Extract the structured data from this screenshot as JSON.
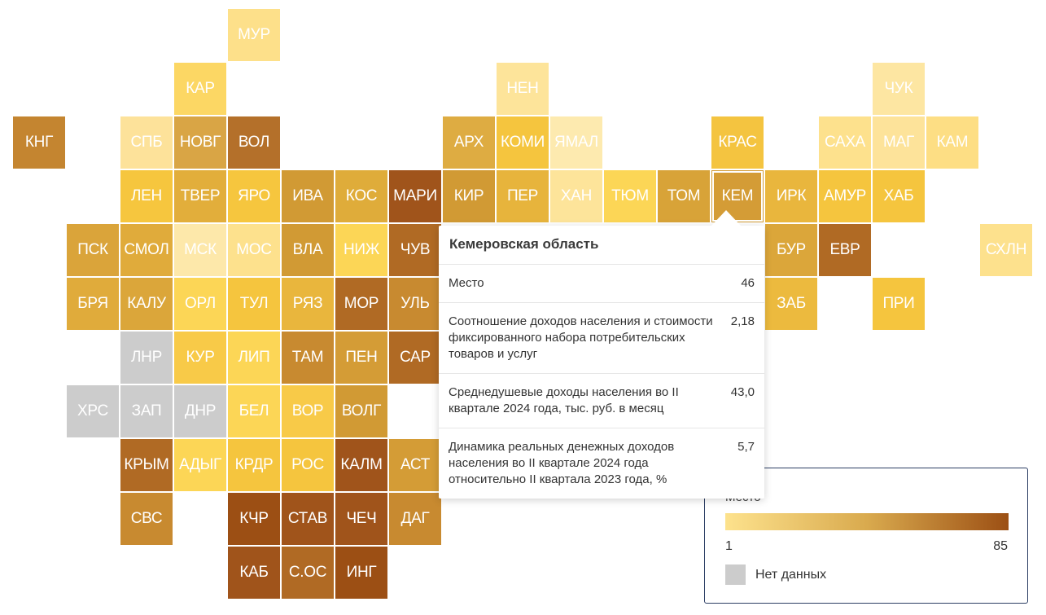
{
  "tiles": [
    {
      "label": "МУР",
      "col": 4,
      "row": 0,
      "color": "#fde08a"
    },
    {
      "label": "КАР",
      "col": 3,
      "row": 1,
      "color": "#fcd764"
    },
    {
      "label": "НЕН",
      "col": 9,
      "row": 1,
      "color": "#fde49a"
    },
    {
      "label": "ЧУК",
      "col": 16,
      "row": 1,
      "color": "#fde6a2"
    },
    {
      "label": "КНГ",
      "col": 0,
      "row": 2,
      "color": "#c48530"
    },
    {
      "label": "СПБ",
      "col": 2,
      "row": 2,
      "color": "#fde29a"
    },
    {
      "label": "НОВГ",
      "col": 3,
      "row": 2,
      "color": "#d9a545"
    },
    {
      "label": "ВОЛ",
      "col": 4,
      "row": 2,
      "color": "#b4702a"
    },
    {
      "label": "АРХ",
      "col": 8,
      "row": 2,
      "color": "#deac42"
    },
    {
      "label": "КОМИ",
      "col": 9,
      "row": 2,
      "color": "#f5c53e"
    },
    {
      "label": "ЯМАЛ",
      "col": 10,
      "row": 2,
      "color": "#fdeaaf"
    },
    {
      "label": "КРАС",
      "col": 13,
      "row": 2,
      "color": "#f4c440"
    },
    {
      "label": "САХА",
      "col": 15,
      "row": 2,
      "color": "#fde18d"
    },
    {
      "label": "МАГ",
      "col": 16,
      "row": 2,
      "color": "#fde39a"
    },
    {
      "label": "КАМ",
      "col": 17,
      "row": 2,
      "color": "#fdde84"
    },
    {
      "label": "ЛЕН",
      "col": 2,
      "row": 3,
      "color": "#f6c63e"
    },
    {
      "label": "ТВЕР",
      "col": 3,
      "row": 3,
      "color": "#e2ae3b"
    },
    {
      "label": "ЯРО",
      "col": 4,
      "row": 3,
      "color": "#f6c63e"
    },
    {
      "label": "ИВА",
      "col": 5,
      "row": 3,
      "color": "#d19a34"
    },
    {
      "label": "КОС",
      "col": 6,
      "row": 3,
      "color": "#dfac3a"
    },
    {
      "label": "МАРИ",
      "col": 7,
      "row": 3,
      "color": "#a0541b"
    },
    {
      "label": "КИР",
      "col": 8,
      "row": 3,
      "color": "#d19a34"
    },
    {
      "label": "ПЕР",
      "col": 9,
      "row": 3,
      "color": "#e7b43c"
    },
    {
      "label": "ХАН",
      "col": 10,
      "row": 3,
      "color": "#fde49a"
    },
    {
      "label": "ТЮМ",
      "col": 11,
      "row": 3,
      "color": "#fcd656"
    },
    {
      "label": "ТОМ",
      "col": 12,
      "row": 3,
      "color": "#d8a338"
    },
    {
      "label": "КЕМ",
      "col": 13,
      "row": 3,
      "color": "#d49c36"
    },
    {
      "label": "ИРК",
      "col": 14,
      "row": 3,
      "color": "#e9b63d"
    },
    {
      "label": "АМУР",
      "col": 15,
      "row": 3,
      "color": "#f5c53e"
    },
    {
      "label": "ХАБ",
      "col": 16,
      "row": 3,
      "color": "#f5c53e"
    },
    {
      "label": "ПСК",
      "col": 1,
      "row": 4,
      "color": "#daa43a"
    },
    {
      "label": "СМОЛ",
      "col": 2,
      "row": 4,
      "color": "#e0ab3b"
    },
    {
      "label": "МСК",
      "col": 3,
      "row": 4,
      "color": "#fde8aa"
    },
    {
      "label": "МОС",
      "col": 4,
      "row": 4,
      "color": "#fde18d"
    },
    {
      "label": "ВЛА",
      "col": 5,
      "row": 4,
      "color": "#d19a34"
    },
    {
      "label": "НИЖ",
      "col": 6,
      "row": 4,
      "color": "#fcd656"
    },
    {
      "label": "ЧУВ",
      "col": 7,
      "row": 4,
      "color": "#b06a24"
    },
    {
      "label": "БУР",
      "col": 14,
      "row": 4,
      "color": "#dba63a"
    },
    {
      "label": "ЕВР",
      "col": 15,
      "row": 4,
      "color": "#b06a24"
    },
    {
      "label": "СХЛН",
      "col": 18,
      "row": 4,
      "color": "#fde18d"
    },
    {
      "label": "БРЯ",
      "col": 1,
      "row": 5,
      "color": "#e0ab3b"
    },
    {
      "label": "КАЛУ",
      "col": 2,
      "row": 5,
      "color": "#dba63a"
    },
    {
      "label": "ОРЛ",
      "col": 3,
      "row": 5,
      "color": "#fcd656"
    },
    {
      "label": "ТУЛ",
      "col": 4,
      "row": 5,
      "color": "#f5c53e"
    },
    {
      "label": "РЯЗ",
      "col": 5,
      "row": 5,
      "color": "#e9b63d"
    },
    {
      "label": "МОР",
      "col": 6,
      "row": 5,
      "color": "#b06a24"
    },
    {
      "label": "УЛЬ",
      "col": 7,
      "row": 5,
      "color": "#c88a30"
    },
    {
      "label": "ЗАБ",
      "col": 14,
      "row": 5,
      "color": "#ecba3e"
    },
    {
      "label": "ПРИ",
      "col": 16,
      "row": 5,
      "color": "#f5c53e"
    },
    {
      "label": "ЛНР",
      "col": 2,
      "row": 6,
      "color": "#cccccc"
    },
    {
      "label": "КУР",
      "col": 3,
      "row": 6,
      "color": "#f8ca48"
    },
    {
      "label": "ЛИП",
      "col": 4,
      "row": 6,
      "color": "#fcd656"
    },
    {
      "label": "ТАМ",
      "col": 5,
      "row": 6,
      "color": "#c88a30"
    },
    {
      "label": "ПЕН",
      "col": 6,
      "row": 6,
      "color": "#d49c36"
    },
    {
      "label": "САР",
      "col": 7,
      "row": 6,
      "color": "#b06a24"
    },
    {
      "label": "ХРС",
      "col": 1,
      "row": 7,
      "color": "#cccccc"
    },
    {
      "label": "ЗАП",
      "col": 2,
      "row": 7,
      "color": "#cccccc"
    },
    {
      "label": "ДНР",
      "col": 3,
      "row": 7,
      "color": "#cccccc"
    },
    {
      "label": "БЕЛ",
      "col": 4,
      "row": 7,
      "color": "#fcd656"
    },
    {
      "label": "ВОР",
      "col": 5,
      "row": 7,
      "color": "#f8ca48"
    },
    {
      "label": "ВОЛГ",
      "col": 6,
      "row": 7,
      "color": "#d19a34"
    },
    {
      "label": "КРЫМ",
      "col": 2,
      "row": 8,
      "color": "#b06a24"
    },
    {
      "label": "АДЫГ",
      "col": 3,
      "row": 8,
      "color": "#fcd656"
    },
    {
      "label": "КРДР",
      "col": 4,
      "row": 8,
      "color": "#f5c53e"
    },
    {
      "label": "РОС",
      "col": 5,
      "row": 8,
      "color": "#f5c53e"
    },
    {
      "label": "КАЛМ",
      "col": 6,
      "row": 8,
      "color": "#a0541b"
    },
    {
      "label": "АСТ",
      "col": 7,
      "row": 8,
      "color": "#d49c36"
    },
    {
      "label": "СВС",
      "col": 2,
      "row": 9,
      "color": "#c88a30"
    },
    {
      "label": "КЧР",
      "col": 4,
      "row": 9,
      "color": "#9c4f14"
    },
    {
      "label": "СТАВ",
      "col": 5,
      "row": 9,
      "color": "#a0541b"
    },
    {
      "label": "ЧЕЧ",
      "col": 6,
      "row": 9,
      "color": "#a0541b"
    },
    {
      "label": "ДАГ",
      "col": 7,
      "row": 9,
      "color": "#c88a30"
    },
    {
      "label": "КАБ",
      "col": 4,
      "row": 10,
      "color": "#a0541b"
    },
    {
      "label": "С.ОС",
      "col": 5,
      "row": 10,
      "color": "#b06a24"
    },
    {
      "label": "ИНГ",
      "col": 6,
      "row": 10,
      "color": "#9c4f14"
    }
  ],
  "selected_tile": "КЕМ",
  "tooltip": {
    "title": "Кемеровская область",
    "rows": [
      {
        "label": "Место",
        "value": "46"
      },
      {
        "label": "Соотношение доходов населения и стоимости фиксированного набора потребительских товаров и услуг",
        "value": "2,18"
      },
      {
        "label": "Среднедушевые доходы населения во II квартале 2024 года, тыс. руб. в месяц",
        "value": "43,0"
      },
      {
        "label": "Динамика реальных денежных доходов населения во II квартале 2024 года относительно II квартала 2023 года, %",
        "value": "5,7"
      }
    ]
  },
  "legend": {
    "title": "Место",
    "min": "1",
    "max": "85",
    "gradient": [
      "#fde28d",
      "#d9aa4e",
      "#9c4f14"
    ],
    "no_data_label": "Нет данных",
    "no_data_color": "#cccccc"
  }
}
